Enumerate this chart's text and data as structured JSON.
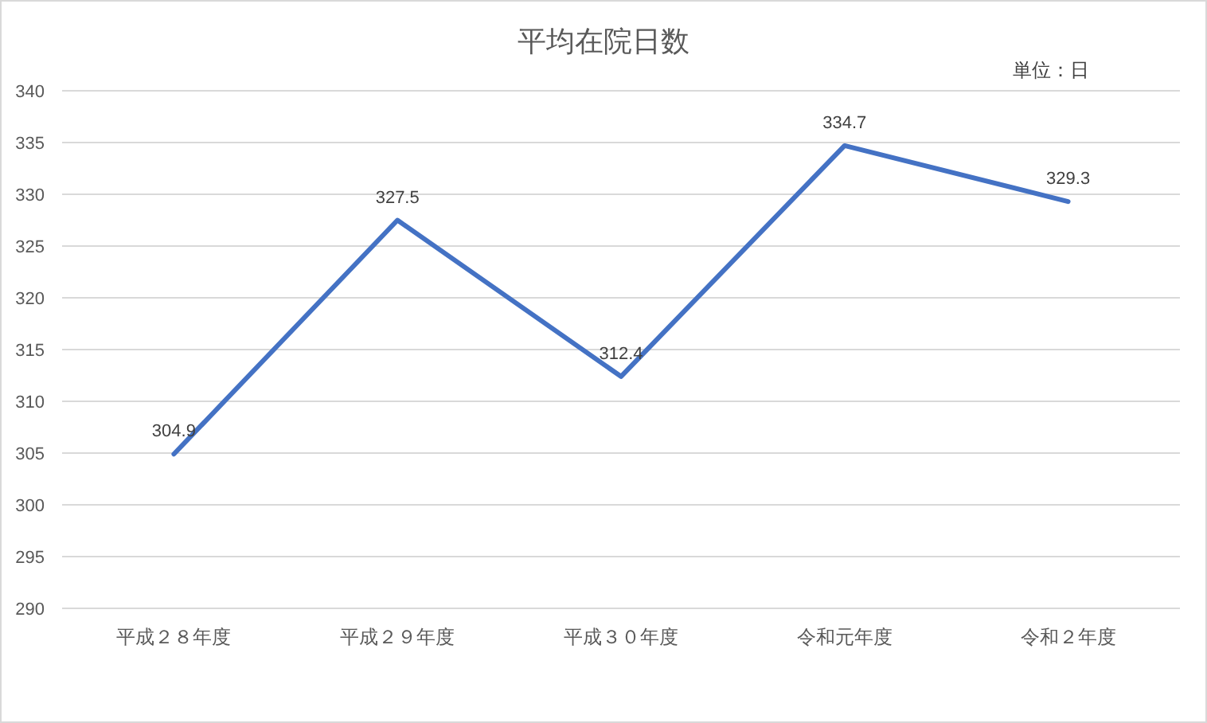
{
  "chart_data": {
    "type": "line",
    "title": "平均在院日数",
    "annotations": [
      "単位：日"
    ],
    "categories": [
      "平成２８年度",
      "平成２９年度",
      "平成３０年度",
      "令和元年度",
      "令和２年度"
    ],
    "series": [
      {
        "color": "#4472c4",
        "values": [
          304.9,
          327.5,
          312.4,
          334.7,
          329.3
        ]
      }
    ],
    "ylim": [
      290,
      340
    ],
    "yticks": [
      290,
      295,
      300,
      305,
      310,
      315,
      320,
      325,
      330,
      335,
      340
    ],
    "grid": "y",
    "data_labels": true
  }
}
